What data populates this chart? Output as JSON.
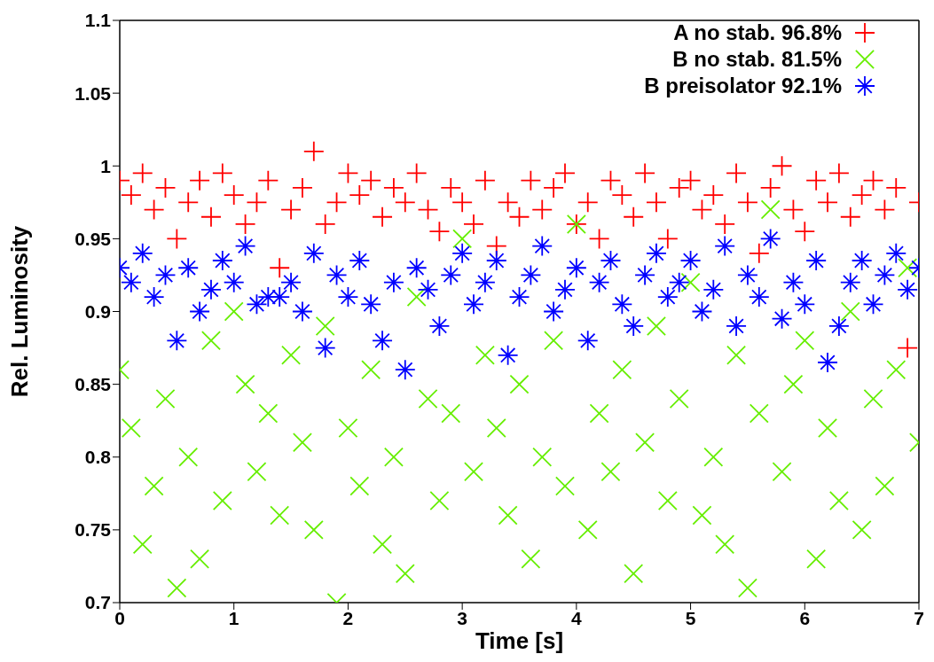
{
  "chart_data": {
    "type": "scatter",
    "xlabel": "Time [s]",
    "ylabel": "Rel. Luminosity",
    "xlim": [
      0,
      7
    ],
    "xticks": [
      0,
      1,
      2,
      3,
      4,
      5,
      6,
      7
    ],
    "ylim": [
      0.7,
      1.1
    ],
    "yticks": [
      0.7,
      0.75,
      0.8,
      0.85,
      0.9,
      0.95,
      1,
      1.05,
      1.1
    ],
    "legend": "top right",
    "grid": false,
    "x": [
      0,
      0.1,
      0.2,
      0.3,
      0.4,
      0.5,
      0.6,
      0.7,
      0.8,
      0.9,
      1,
      1.1,
      1.2,
      1.3,
      1.4,
      1.5,
      1.6,
      1.7,
      1.8,
      1.9,
      2,
      2.1,
      2.2,
      2.3,
      2.4,
      2.5,
      2.6,
      2.7,
      2.8,
      2.9,
      3,
      3.1,
      3.2,
      3.3,
      3.4,
      3.5,
      3.6,
      3.7,
      3.8,
      3.9,
      4,
      4.1,
      4.2,
      4.3,
      4.4,
      4.5,
      4.6,
      4.7,
      4.8,
      4.9,
      5,
      5.1,
      5.2,
      5.3,
      5.4,
      5.5,
      5.6,
      5.7,
      5.8,
      5.9,
      6,
      6.1,
      6.2,
      6.3,
      6.4,
      6.5,
      6.6,
      6.7,
      6.8,
      6.9,
      7
    ],
    "series": [
      {
        "name": "A no stab. 96.8%",
        "color": "#ff0000",
        "values": [
          0.99,
          0.98,
          0.995,
          0.97,
          0.985,
          0.95,
          0.975,
          0.99,
          0.965,
          0.995,
          0.98,
          0.96,
          0.975,
          0.99,
          0.93,
          0.97,
          0.985,
          1.01,
          0.96,
          0.975,
          0.995,
          0.98,
          0.99,
          0.965,
          0.985,
          0.975,
          0.995,
          0.97,
          0.955,
          0.985,
          0.975,
          0.96,
          0.99,
          0.945,
          0.975,
          0.965,
          0.99,
          0.97,
          0.985,
          0.995,
          0.96,
          0.975,
          0.95,
          0.99,
          0.98,
          0.965,
          0.995,
          0.975,
          0.95,
          0.985,
          0.99,
          0.97,
          0.98,
          0.96,
          0.995,
          0.975,
          0.94,
          0.985,
          1,
          0.97,
          0.955,
          0.99,
          0.975,
          0.995,
          0.965,
          0.98,
          0.99,
          0.97,
          0.985,
          0.875,
          0.975
        ]
      },
      {
        "name": "B no stab. 81.5%",
        "color": "#66ee00",
        "marker": "cross",
        "values": [
          0.86,
          0.82,
          0.74,
          0.78,
          0.84,
          0.71,
          0.8,
          0.73,
          0.88,
          0.77,
          0.9,
          0.85,
          0.79,
          0.83,
          0.76,
          0.87,
          0.81,
          0.75,
          0.89,
          0.7,
          0.82,
          0.78,
          0.86,
          0.74,
          0.8,
          0.72,
          0.91,
          0.84,
          0.77,
          0.83,
          0.95,
          0.79,
          0.87,
          0.82,
          0.76,
          0.85,
          0.73,
          0.8,
          0.88,
          0.78,
          0.96,
          0.75,
          0.83,
          0.79,
          0.86,
          0.72,
          0.81,
          0.89,
          0.77,
          0.84,
          0.92,
          0.76,
          0.8,
          0.74,
          0.87,
          0.71,
          0.83,
          0.97,
          0.79,
          0.85,
          0.88,
          0.73,
          0.82,
          0.77,
          0.9,
          0.75,
          0.84,
          0.78,
          0.86,
          0.93,
          0.81
        ]
      },
      {
        "name": "B preisolator 92.1%",
        "color": "#0000ff",
        "marker": "star",
        "values": [
          0.93,
          0.92,
          0.94,
          0.91,
          0.925,
          0.88,
          0.93,
          0.9,
          0.915,
          0.935,
          0.92,
          0.945,
          0.905,
          0.91,
          0.91,
          0.92,
          0.9,
          0.94,
          0.875,
          0.925,
          0.91,
          0.935,
          0.905,
          0.88,
          0.92,
          0.86,
          0.93,
          0.915,
          0.89,
          0.925,
          0.94,
          0.905,
          0.92,
          0.935,
          0.87,
          0.91,
          0.925,
          0.945,
          0.9,
          0.915,
          0.93,
          0.88,
          0.92,
          0.935,
          0.905,
          0.89,
          0.925,
          0.94,
          0.91,
          0.92,
          0.935,
          0.9,
          0.915,
          0.945,
          0.89,
          0.925,
          0.91,
          0.95,
          0.895,
          0.92,
          0.905,
          0.935,
          0.865,
          0.89,
          0.92,
          0.935,
          0.905,
          0.925,
          0.94,
          0.915,
          0.93
        ]
      }
    ]
  }
}
